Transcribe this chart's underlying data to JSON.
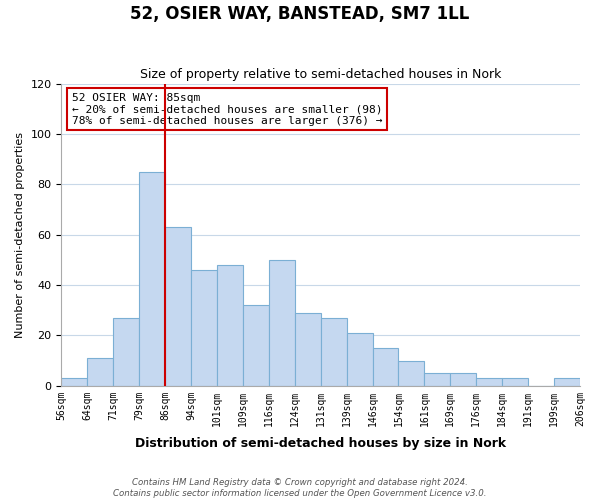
{
  "title": "52, OSIER WAY, BANSTEAD, SM7 1LL",
  "subtitle": "Size of property relative to semi-detached houses in Nork",
  "xlabel": "Distribution of semi-detached houses by size in Nork",
  "ylabel": "Number of semi-detached properties",
  "bin_labels": [
    "56sqm",
    "64sqm",
    "71sqm",
    "79sqm",
    "86sqm",
    "94sqm",
    "101sqm",
    "109sqm",
    "116sqm",
    "124sqm",
    "131sqm",
    "139sqm",
    "146sqm",
    "154sqm",
    "161sqm",
    "169sqm",
    "176sqm",
    "184sqm",
    "191sqm",
    "199sqm",
    "206sqm"
  ],
  "bar_values": [
    3,
    11,
    27,
    85,
    63,
    46,
    48,
    32,
    50,
    29,
    27,
    21,
    15,
    10,
    5,
    5,
    3,
    3,
    0,
    3
  ],
  "bar_color": "#c5d8f0",
  "bar_edge_color": "#7bafd4",
  "highlight_line_x_label": "86sqm",
  "highlight_line_color": "#cc0000",
  "annotation_text": "52 OSIER WAY: 85sqm\n← 20% of semi-detached houses are smaller (98)\n78% of semi-detached houses are larger (376) →",
  "annotation_box_color": "#ffffff",
  "annotation_box_edge_color": "#cc0000",
  "ylim": [
    0,
    120
  ],
  "yticks": [
    0,
    20,
    40,
    60,
    80,
    100,
    120
  ],
  "footer_line1": "Contains HM Land Registry data © Crown copyright and database right 2024.",
  "footer_line2": "Contains public sector information licensed under the Open Government Licence v3.0.",
  "background_color": "#ffffff",
  "grid_color": "#c8d8e8"
}
